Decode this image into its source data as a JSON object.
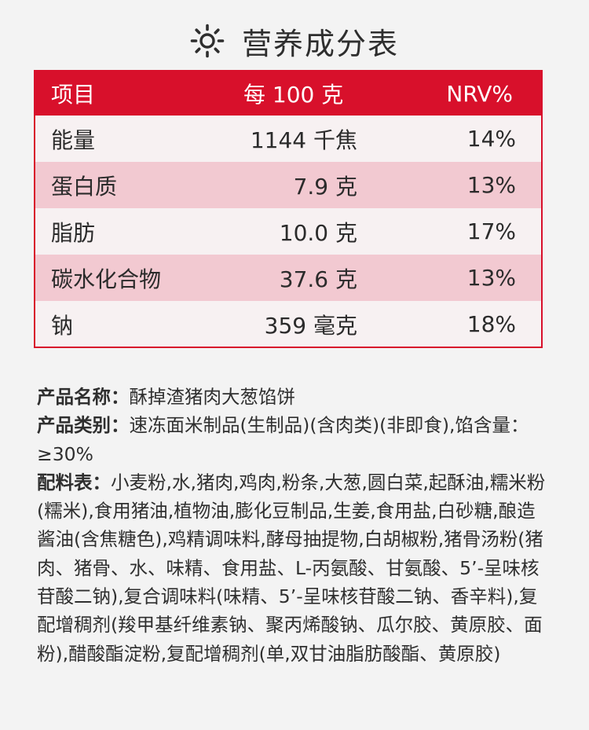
{
  "title": "营养成分表",
  "table": {
    "headers": [
      "项目",
      "每 100 克",
      "NRV%"
    ],
    "rows": [
      {
        "item": "能量",
        "per100": "1144 千焦",
        "nrv": "14%"
      },
      {
        "item": "蛋白质",
        "per100": "7.9 克",
        "nrv": "13%"
      },
      {
        "item": "脂肪",
        "per100": "10.0 克",
        "nrv": "17%"
      },
      {
        "item": "碳水化合物",
        "per100": "37.6 克",
        "nrv": "13%"
      },
      {
        "item": "钠",
        "per100": "359 毫克",
        "nrv": "18%"
      }
    ]
  },
  "info": {
    "name_label": "产品名称：",
    "name_value": "酥掉渣猪肉大葱馅饼",
    "category_label": "产品类别：",
    "category_value": "速冻面米制品(生制品)(含肉类)(非即食),馅含量：≥30%",
    "ingredients_label": "配料表：",
    "ingredients_value": "小麦粉,水,猪肉,鸡肉,粉条,大葱,圆白菜,起酥油,糯米粉(糯米),食用猪油,植物油,膨化豆制品,生姜,食用盐,白砂糖,酿造酱油(含焦糖色),鸡精调味料,酵母抽提物,白胡椒粉,猪骨汤粉(猪肉、猪骨、水、味精、食用盐、L-丙氨酸、甘氨酸、5’-呈味核苷酸二钠),复合调味料(味精、5’-呈味核苷酸二钠、香辛料),复配增稠剂(羧甲基纤维素钠、聚丙烯酸钠、瓜尔胶、黄原胶、面粉),醋酸酯淀粉,复配增稠剂(单,双甘油脂肪酸酯、黄原胶)"
  },
  "colors": {
    "accent": "#d8102b",
    "alt_row": "#f2c9d1",
    "background": "#f3f3f3"
  },
  "icons": {
    "title_icon": "sun-icon"
  }
}
